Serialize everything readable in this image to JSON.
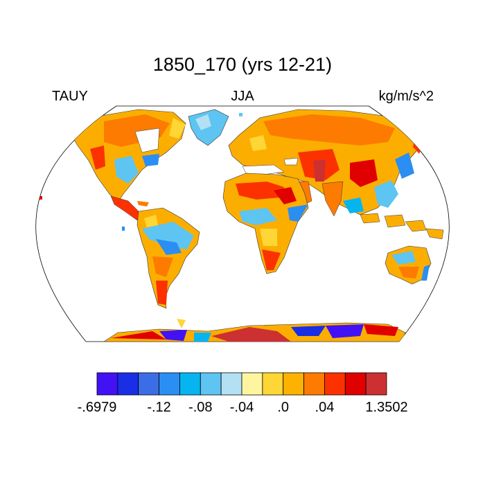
{
  "title": "1850_170 (yrs 12-21)",
  "left_label": "TAUY",
  "center_label": "JJA",
  "right_label": "kg/m/s^2",
  "colorbar": {
    "colors": [
      "#4212f5",
      "#1a2ee6",
      "#3b6ee6",
      "#2b8ef2",
      "#06b5f0",
      "#5ec4f2",
      "#b4e0f4",
      "#fff5a0",
      "#fed636",
      "#fcb200",
      "#fd7b00",
      "#fb3200",
      "#e00000",
      "#cd3030"
    ],
    "tick_labels": [
      "-.6979",
      "-.12",
      "-.08",
      "-.04",
      ".0",
      ".04",
      "1.3502"
    ],
    "tick_boundaries": [
      0,
      3,
      5,
      7,
      9,
      11,
      14
    ]
  }
}
